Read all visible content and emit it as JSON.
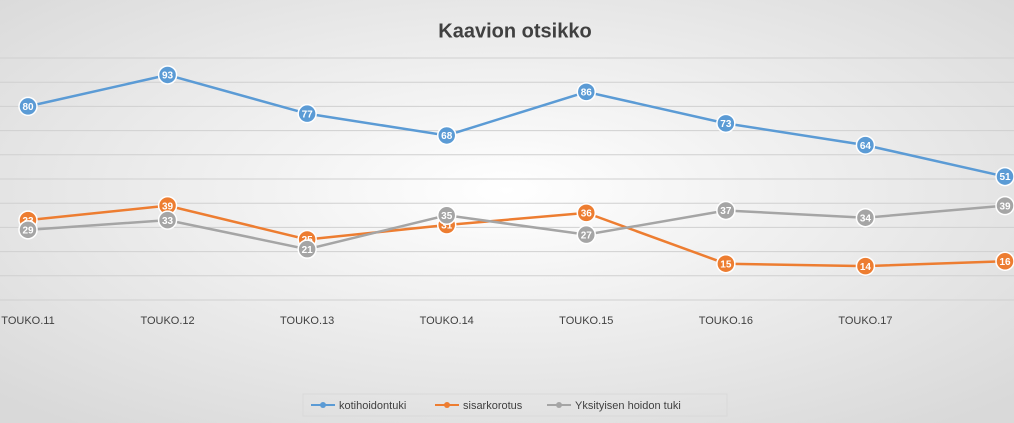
{
  "chart_data": {
    "type": "line",
    "title": "Kaavion otsikko",
    "categories": [
      "TOUKO.11",
      "TOUKO.12",
      "TOUKO.13",
      "TOUKO.14",
      "TOUKO.15",
      "TOUKO.16",
      "TOUKO.17",
      null
    ],
    "series": [
      {
        "name": "kotihoidontuki",
        "color": "#5b9bd5",
        "values": [
          80,
          93,
          77,
          68,
          86,
          73,
          64,
          51
        ]
      },
      {
        "name": "sisarkorotus",
        "color": "#ed7d31",
        "values": [
          33,
          39,
          25,
          31,
          36,
          15,
          14,
          16
        ]
      },
      {
        "name": "Yksityisen hoidon tuki",
        "color": "#a5a5a5",
        "values": [
          29,
          33,
          21,
          35,
          27,
          37,
          34,
          39
        ]
      }
    ],
    "ylim": [
      0,
      100
    ],
    "yticks": [
      0,
      10,
      20,
      30,
      40,
      50,
      60,
      70,
      80,
      90,
      100
    ],
    "grid": true,
    "legend": "bottom"
  }
}
